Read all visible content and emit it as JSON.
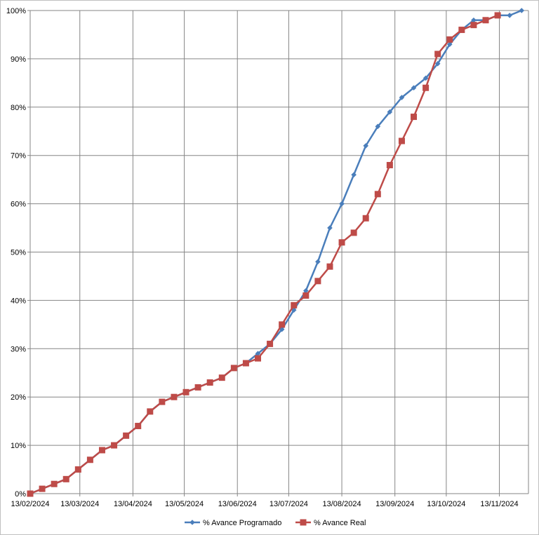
{
  "chart_data": {
    "type": "line",
    "title": "",
    "xlabel": "",
    "ylabel": "",
    "x_ticks": [
      "13/02/2024",
      "13/03/2024",
      "13/04/2024",
      "13/05/2024",
      "13/06/2024",
      "13/07/2024",
      "13/08/2024",
      "13/09/2024",
      "13/10/2024",
      "13/11/2024"
    ],
    "y_ticks": [
      "0%",
      "10%",
      "20%",
      "30%",
      "40%",
      "50%",
      "60%",
      "70%",
      "80%",
      "90%",
      "100%"
    ],
    "ylim": [
      0,
      100
    ],
    "xlim": [
      "2024-02-13",
      "2024-11-30"
    ],
    "grid": true,
    "legend_position": "bottom",
    "series": [
      {
        "name": "% Avance Programado",
        "color": "#4a7ebb",
        "marker": "diamond",
        "points": [
          [
            "2024-02-13",
            0
          ],
          [
            "2024-02-20",
            1
          ],
          [
            "2024-02-27",
            2
          ],
          [
            "2024-03-05",
            3
          ],
          [
            "2024-03-12",
            5
          ],
          [
            "2024-03-19",
            7
          ],
          [
            "2024-03-26",
            9
          ],
          [
            "2024-04-02",
            10
          ],
          [
            "2024-04-09",
            12
          ],
          [
            "2024-04-16",
            14
          ],
          [
            "2024-04-23",
            17
          ],
          [
            "2024-04-30",
            19
          ],
          [
            "2024-05-07",
            20
          ],
          [
            "2024-05-14",
            21
          ],
          [
            "2024-05-21",
            22
          ],
          [
            "2024-05-28",
            23
          ],
          [
            "2024-06-04",
            24
          ],
          [
            "2024-06-11",
            26
          ],
          [
            "2024-06-18",
            27
          ],
          [
            "2024-06-25",
            29
          ],
          [
            "2024-07-02",
            31
          ],
          [
            "2024-07-09",
            34
          ],
          [
            "2024-07-16",
            38
          ],
          [
            "2024-07-23",
            42
          ],
          [
            "2024-07-30",
            48
          ],
          [
            "2024-08-06",
            55
          ],
          [
            "2024-08-13",
            60
          ],
          [
            "2024-08-20",
            66
          ],
          [
            "2024-08-27",
            72
          ],
          [
            "2024-09-03",
            76
          ],
          [
            "2024-09-10",
            79
          ],
          [
            "2024-09-17",
            82
          ],
          [
            "2024-09-24",
            84
          ],
          [
            "2024-10-01",
            86
          ],
          [
            "2024-10-08",
            89
          ],
          [
            "2024-10-15",
            93
          ],
          [
            "2024-10-22",
            96
          ],
          [
            "2024-10-29",
            98
          ],
          [
            "2024-11-05",
            98
          ],
          [
            "2024-11-12",
            99
          ],
          [
            "2024-11-19",
            99
          ],
          [
            "2024-11-26",
            100
          ]
        ]
      },
      {
        "name": "% Avance Real",
        "color": "#be4b48",
        "marker": "square",
        "points": [
          [
            "2024-02-13",
            0
          ],
          [
            "2024-02-20",
            1
          ],
          [
            "2024-02-27",
            2
          ],
          [
            "2024-03-05",
            3
          ],
          [
            "2024-03-12",
            5
          ],
          [
            "2024-03-19",
            7
          ],
          [
            "2024-03-26",
            9
          ],
          [
            "2024-04-02",
            10
          ],
          [
            "2024-04-09",
            12
          ],
          [
            "2024-04-16",
            14
          ],
          [
            "2024-04-23",
            17
          ],
          [
            "2024-04-30",
            19
          ],
          [
            "2024-05-07",
            20
          ],
          [
            "2024-05-14",
            21
          ],
          [
            "2024-05-21",
            22
          ],
          [
            "2024-05-28",
            23
          ],
          [
            "2024-06-04",
            24
          ],
          [
            "2024-06-11",
            26
          ],
          [
            "2024-06-18",
            27
          ],
          [
            "2024-06-25",
            28
          ],
          [
            "2024-07-02",
            31
          ],
          [
            "2024-07-09",
            35
          ],
          [
            "2024-07-16",
            39
          ],
          [
            "2024-07-23",
            41
          ],
          [
            "2024-07-30",
            44
          ],
          [
            "2024-08-06",
            47
          ],
          [
            "2024-08-13",
            52
          ],
          [
            "2024-08-20",
            54
          ],
          [
            "2024-08-27",
            57
          ],
          [
            "2024-09-03",
            62
          ],
          [
            "2024-09-10",
            68
          ],
          [
            "2024-09-17",
            73
          ],
          [
            "2024-09-24",
            78
          ],
          [
            "2024-10-01",
            84
          ],
          [
            "2024-10-08",
            91
          ],
          [
            "2024-10-15",
            94
          ],
          [
            "2024-10-22",
            96
          ],
          [
            "2024-10-29",
            97
          ],
          [
            "2024-11-05",
            98
          ],
          [
            "2024-11-12",
            99
          ]
        ]
      }
    ]
  }
}
